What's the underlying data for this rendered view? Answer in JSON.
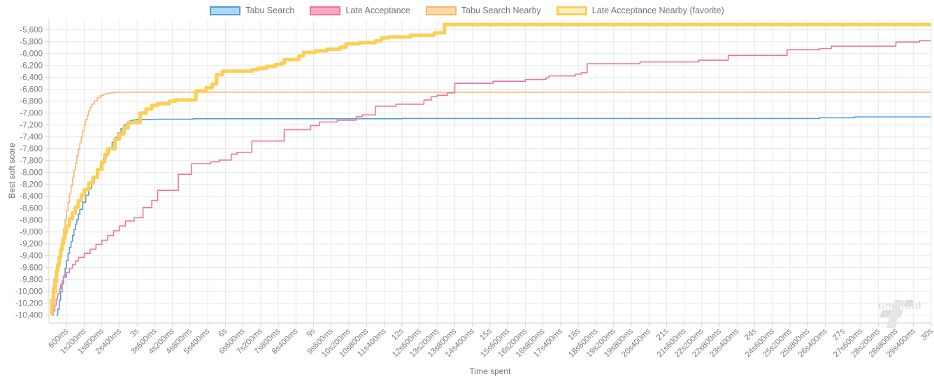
{
  "watermark": {
    "text": "timefold"
  },
  "chart_data": {
    "type": "line",
    "step": true,
    "title": "",
    "xlabel": "Time spent",
    "ylabel": "Best soft score",
    "grid": true,
    "legend_position": "top",
    "x_range_ms": [
      0,
      30000
    ],
    "ylim": [
      -10533,
      -5427
    ],
    "x_ticks": {
      "interval_ms": 600,
      "labels": [
        "600ms",
        "1s200ms",
        "1s800ms",
        "2s400ms",
        "3s",
        "3s600ms",
        "4s200ms",
        "4s800ms",
        "5s400ms",
        "6s",
        "6s600ms",
        "7s200ms",
        "7s800ms",
        "8s400ms",
        "9s",
        "9s600ms",
        "10s200ms",
        "10s800ms",
        "11s400ms",
        "12s",
        "12s600ms",
        "13s200ms",
        "13s800ms",
        "14s400ms",
        "15s",
        "15s600ms",
        "16s200ms",
        "16s800ms",
        "17s400ms",
        "18s",
        "18s600ms",
        "19s200ms",
        "19s800ms",
        "20s400ms",
        "21s",
        "21s600ms",
        "22s200ms",
        "22s800ms",
        "23s400ms",
        "24s",
        "24s600ms",
        "25s200ms",
        "25s800ms",
        "26s400ms",
        "27s",
        "27s600ms",
        "28s200ms",
        "28s800ms",
        "29s400ms",
        "30s"
      ]
    },
    "y_ticks": {
      "start": -5600,
      "step": -200,
      "labels": [
        "-5,600",
        "-5,800",
        "-6,000",
        "-6,200",
        "-6,400",
        "-6,600",
        "-6,800",
        "-7,000",
        "-7,200",
        "-7,400",
        "-7,600",
        "-7,800",
        "-8,000",
        "-8,200",
        "-8,400",
        "-8,600",
        "-8,800",
        "-9,000",
        "-9,200",
        "-9,400",
        "-9,600",
        "-9,800",
        "-10,000",
        "-10,200",
        "-10,400"
      ]
    },
    "series": [
      {
        "name": "Tabu Search",
        "color": "#4f9fd5",
        "legend_fill": "#aed6f2",
        "width": 1.6,
        "points": [
          [
            250,
            -10400
          ],
          [
            300,
            -10300
          ],
          [
            350,
            -10150
          ],
          [
            400,
            -10000
          ],
          [
            450,
            -9870
          ],
          [
            500,
            -9740
          ],
          [
            550,
            -9610
          ],
          [
            600,
            -9480
          ],
          [
            650,
            -9360
          ],
          [
            700,
            -9260
          ],
          [
            750,
            -9160
          ],
          [
            800,
            -9060
          ],
          [
            850,
            -8960
          ],
          [
            900,
            -8870
          ],
          [
            950,
            -8790
          ],
          [
            1000,
            -8700
          ],
          [
            1050,
            -8620
          ],
          [
            1150,
            -8500
          ],
          [
            1250,
            -8380
          ],
          [
            1350,
            -8270
          ],
          [
            1450,
            -8160
          ],
          [
            1550,
            -8060
          ],
          [
            1650,
            -7960
          ],
          [
            1750,
            -7860
          ],
          [
            1850,
            -7760
          ],
          [
            1950,
            -7670
          ],
          [
            2050,
            -7580
          ],
          [
            2150,
            -7490
          ],
          [
            2250,
            -7410
          ],
          [
            2350,
            -7330
          ],
          [
            2450,
            -7260
          ],
          [
            2550,
            -7200
          ],
          [
            2650,
            -7160
          ],
          [
            2750,
            -7130
          ],
          [
            2850,
            -7115
          ],
          [
            3000,
            -7108
          ],
          [
            3600,
            -7103
          ],
          [
            4900,
            -7095
          ],
          [
            12000,
            -7090
          ],
          [
            26200,
            -7080
          ],
          [
            27400,
            -7065
          ],
          [
            30000,
            -7065
          ]
        ]
      },
      {
        "name": "Late Acceptance",
        "color": "#f0739a",
        "legend_fill": "#f9a9c2",
        "width": 1.6,
        "points": [
          [
            100,
            -10400
          ],
          [
            150,
            -10330
          ],
          [
            200,
            -10230
          ],
          [
            250,
            -10130
          ],
          [
            300,
            -10040
          ],
          [
            350,
            -9960
          ],
          [
            400,
            -9890
          ],
          [
            450,
            -9820
          ],
          [
            500,
            -9760
          ],
          [
            600,
            -9680
          ],
          [
            700,
            -9610
          ],
          [
            800,
            -9550
          ],
          [
            900,
            -9490
          ],
          [
            1000,
            -9430
          ],
          [
            1200,
            -9360
          ],
          [
            1400,
            -9290
          ],
          [
            1600,
            -9210
          ],
          [
            1800,
            -9140
          ],
          [
            2000,
            -9060
          ],
          [
            2200,
            -8980
          ],
          [
            2400,
            -8900
          ],
          [
            2600,
            -8815
          ],
          [
            2900,
            -8760
          ],
          [
            3200,
            -8590
          ],
          [
            3500,
            -8470
          ],
          [
            3700,
            -8300
          ],
          [
            4400,
            -8030
          ],
          [
            4850,
            -7850
          ],
          [
            5500,
            -7820
          ],
          [
            5800,
            -7790
          ],
          [
            6200,
            -7690
          ],
          [
            6400,
            -7660
          ],
          [
            6900,
            -7470
          ],
          [
            8000,
            -7280
          ],
          [
            8900,
            -7210
          ],
          [
            9200,
            -7150
          ],
          [
            9800,
            -7120
          ],
          [
            10450,
            -7060
          ],
          [
            10650,
            -7030
          ],
          [
            11100,
            -6885
          ],
          [
            11800,
            -6850
          ],
          [
            12750,
            -6780
          ],
          [
            13000,
            -6725
          ],
          [
            13200,
            -6700
          ],
          [
            13550,
            -6660
          ],
          [
            13800,
            -6500
          ],
          [
            15100,
            -6465
          ],
          [
            16200,
            -6435
          ],
          [
            16900,
            -6410
          ],
          [
            17000,
            -6375
          ],
          [
            17900,
            -6345
          ],
          [
            18100,
            -6320
          ],
          [
            18300,
            -6170
          ],
          [
            20100,
            -6140
          ],
          [
            22100,
            -6110
          ],
          [
            23100,
            -6030
          ],
          [
            25100,
            -5935
          ],
          [
            26200,
            -5915
          ],
          [
            26600,
            -5875
          ],
          [
            28800,
            -5805
          ],
          [
            29600,
            -5780
          ],
          [
            30000,
            -5780
          ]
        ]
      },
      {
        "name": "Tabu Search Nearby",
        "color": "#fab46c",
        "legend_fill": "#fcd9ab",
        "width": 1.6,
        "points": [
          [
            100,
            -10350
          ],
          [
            150,
            -10200
          ],
          [
            200,
            -10020
          ],
          [
            250,
            -9840
          ],
          [
            300,
            -9660
          ],
          [
            350,
            -9480
          ],
          [
            400,
            -9300
          ],
          [
            450,
            -9120
          ],
          [
            500,
            -8950
          ],
          [
            550,
            -8790
          ],
          [
            600,
            -8640
          ],
          [
            650,
            -8500
          ],
          [
            700,
            -8360
          ],
          [
            750,
            -8220
          ],
          [
            800,
            -8090
          ],
          [
            850,
            -7960
          ],
          [
            900,
            -7840
          ],
          [
            950,
            -7720
          ],
          [
            1000,
            -7610
          ],
          [
            1050,
            -7500
          ],
          [
            1100,
            -7400
          ],
          [
            1150,
            -7300
          ],
          [
            1200,
            -7200
          ],
          [
            1250,
            -7110
          ],
          [
            1300,
            -7030
          ],
          [
            1350,
            -6960
          ],
          [
            1400,
            -6900
          ],
          [
            1450,
            -6850
          ],
          [
            1550,
            -6790
          ],
          [
            1650,
            -6740
          ],
          [
            1750,
            -6705
          ],
          [
            1850,
            -6680
          ],
          [
            1950,
            -6668
          ],
          [
            2050,
            -6660
          ],
          [
            2200,
            -6652
          ],
          [
            2400,
            -6648
          ],
          [
            30000,
            -6648
          ]
        ]
      },
      {
        "name": "Late Acceptance Nearby (favorite)",
        "color": "#fccf55",
        "legend_fill": "#fdf0c9",
        "width": 5,
        "points": [
          [
            50,
            -10370
          ],
          [
            100,
            -10150
          ],
          [
            150,
            -9950
          ],
          [
            200,
            -9800
          ],
          [
            250,
            -9650
          ],
          [
            300,
            -9550
          ],
          [
            350,
            -9420
          ],
          [
            400,
            -9300
          ],
          [
            450,
            -9200
          ],
          [
            500,
            -9100
          ],
          [
            550,
            -9000
          ],
          [
            600,
            -8900
          ],
          [
            700,
            -8780
          ],
          [
            800,
            -8680
          ],
          [
            900,
            -8580
          ],
          [
            1000,
            -8470
          ],
          [
            1100,
            -8380
          ],
          [
            1200,
            -8290
          ],
          [
            1350,
            -8180
          ],
          [
            1500,
            -8080
          ],
          [
            1650,
            -7950
          ],
          [
            1800,
            -7820
          ],
          [
            1900,
            -7700
          ],
          [
            2000,
            -7600
          ],
          [
            2250,
            -7440
          ],
          [
            2400,
            -7350
          ],
          [
            2550,
            -7250
          ],
          [
            2700,
            -7160
          ],
          [
            3100,
            -7000
          ],
          [
            3300,
            -6930
          ],
          [
            3500,
            -6870
          ],
          [
            3700,
            -6840
          ],
          [
            4100,
            -6800
          ],
          [
            4300,
            -6780
          ],
          [
            5000,
            -6630
          ],
          [
            5350,
            -6570
          ],
          [
            5550,
            -6510
          ],
          [
            5700,
            -6355
          ],
          [
            5900,
            -6295
          ],
          [
            6900,
            -6270
          ],
          [
            7100,
            -6245
          ],
          [
            7400,
            -6215
          ],
          [
            7700,
            -6185
          ],
          [
            7900,
            -6160
          ],
          [
            8000,
            -6100
          ],
          [
            8500,
            -6040
          ],
          [
            8650,
            -5980
          ],
          [
            9050,
            -5955
          ],
          [
            9450,
            -5925
          ],
          [
            9900,
            -5890
          ],
          [
            10100,
            -5835
          ],
          [
            10550,
            -5815
          ],
          [
            11100,
            -5785
          ],
          [
            11300,
            -5735
          ],
          [
            11550,
            -5720
          ],
          [
            12300,
            -5690
          ],
          [
            13100,
            -5650
          ],
          [
            13450,
            -5510
          ],
          [
            30000,
            -5510
          ]
        ]
      }
    ]
  }
}
